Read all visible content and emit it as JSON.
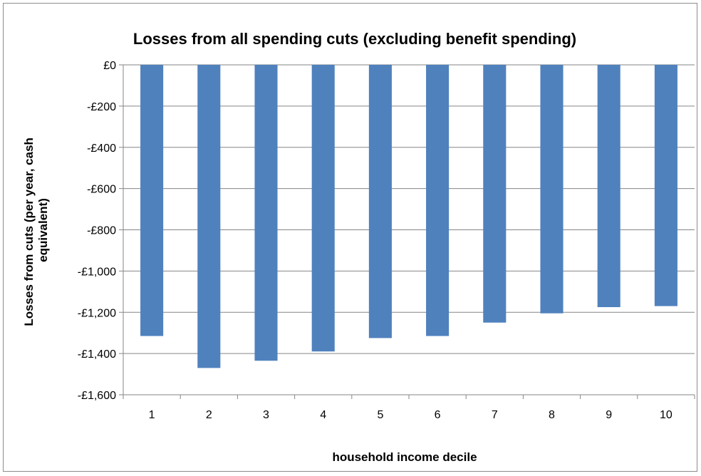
{
  "chart_data": {
    "type": "bar",
    "title": "Losses from all spending cuts (excluding benefit spending)",
    "xlabel": "household income decile",
    "ylabel": "Losses from cuts (per year, cash equivalent)",
    "ylabel_lines": [
      "Losses from cuts (per year, cash",
      "equivalent)"
    ],
    "categories": [
      "1",
      "2",
      "3",
      "4",
      "5",
      "6",
      "7",
      "8",
      "9",
      "10"
    ],
    "values": [
      -1315,
      -1470,
      -1435,
      -1390,
      -1325,
      -1315,
      -1250,
      -1205,
      -1175,
      -1170
    ],
    "ylim": [
      -1600,
      0
    ],
    "yticks": [
      0,
      -200,
      -400,
      -600,
      -800,
      -1000,
      -1200,
      -1400,
      -1600
    ],
    "ytick_labels": [
      "£0",
      "-£200",
      "-£400",
      "-£600",
      "-£800",
      "-£1,000",
      "-£1,200",
      "-£1,400",
      "-£1,600"
    ],
    "grid": true,
    "legend": "none",
    "bar_color": "#4F81BD"
  }
}
